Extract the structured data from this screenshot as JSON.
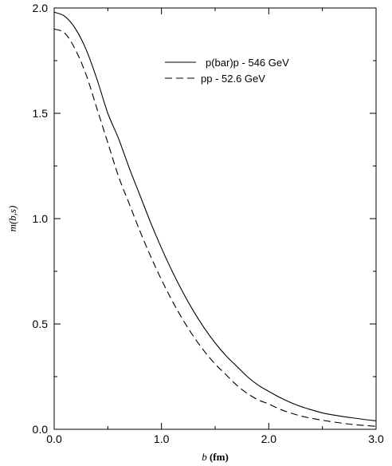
{
  "chart_data": {
    "type": "line",
    "xlabel_var": "b",
    "xlabel_unit": "(fm)",
    "ylabel": "m(b,s)",
    "xlim": [
      0.0,
      3.0
    ],
    "ylim": [
      0.0,
      2.0
    ],
    "xticks": [
      0.0,
      1.0,
      2.0,
      3.0
    ],
    "xtick_labels": [
      "0.0",
      "1.0",
      "2.0",
      "3.0"
    ],
    "yticks": [
      0.0,
      0.5,
      1.0,
      1.5,
      2.0
    ],
    "ytick_labels": [
      "0.0",
      "0.5",
      "1.0",
      "1.5",
      "2.0"
    ],
    "grid": false,
    "legend_position": "top-right",
    "series": [
      {
        "name": "p(bar)p - 546 GeV",
        "style": "solid",
        "color": "#000000",
        "x": [
          0.0,
          0.1,
          0.2,
          0.3,
          0.4,
          0.5,
          0.6,
          0.7,
          0.8,
          0.9,
          1.0,
          1.1,
          1.2,
          1.3,
          1.4,
          1.5,
          1.6,
          1.7,
          1.8,
          1.9,
          2.0,
          2.1,
          2.2,
          2.3,
          2.4,
          2.5,
          2.6,
          2.7,
          2.8,
          2.9,
          3.0
        ],
        "y": [
          1.98,
          1.96,
          1.9,
          1.8,
          1.66,
          1.5,
          1.38,
          1.24,
          1.11,
          0.98,
          0.86,
          0.75,
          0.65,
          0.56,
          0.48,
          0.41,
          0.35,
          0.3,
          0.25,
          0.21,
          0.18,
          0.152,
          0.128,
          0.108,
          0.092,
          0.078,
          0.068,
          0.06,
          0.053,
          0.046,
          0.04
        ]
      },
      {
        "name": "pp - 52.6 GeV",
        "style": "dashed",
        "color": "#000000",
        "x": [
          0.0,
          0.1,
          0.2,
          0.3,
          0.4,
          0.5,
          0.6,
          0.7,
          0.8,
          0.9,
          1.0,
          1.1,
          1.2,
          1.3,
          1.4,
          1.5,
          1.6,
          1.7,
          1.8,
          1.9,
          2.0,
          2.1,
          2.2,
          2.3,
          2.4,
          2.5,
          2.6,
          2.7,
          2.8,
          2.9,
          3.0
        ],
        "y": [
          1.9,
          1.88,
          1.8,
          1.68,
          1.52,
          1.36,
          1.2,
          1.07,
          0.94,
          0.82,
          0.71,
          0.61,
          0.52,
          0.44,
          0.37,
          0.31,
          0.26,
          0.21,
          0.17,
          0.14,
          0.12,
          0.096,
          0.078,
          0.063,
          0.052,
          0.043,
          0.035,
          0.028,
          0.022,
          0.018,
          0.014
        ]
      }
    ]
  }
}
